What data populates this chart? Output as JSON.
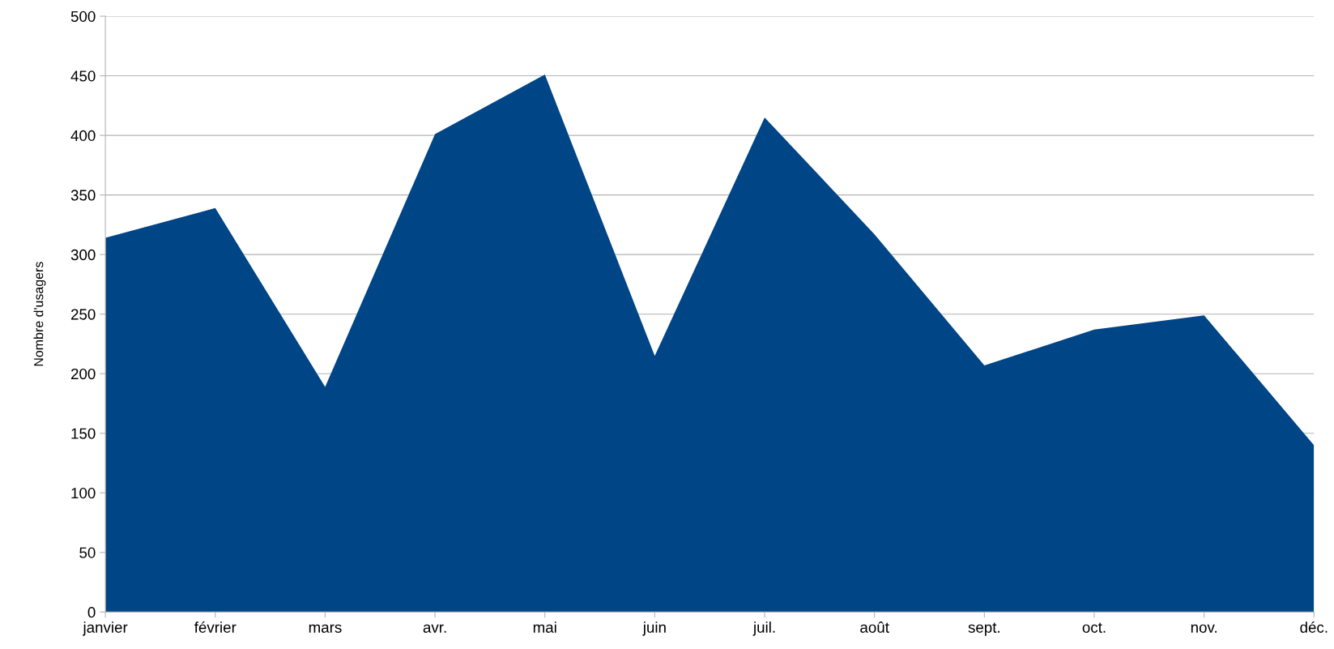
{
  "chart_data": {
    "type": "area",
    "ylabel": "Nombre d'usagers",
    "categories": [
      "janvier",
      "février",
      "mars",
      "avr.",
      "mai",
      "juin",
      "juil.",
      "août",
      "sept.",
      "oct.",
      "nov.",
      "déc."
    ],
    "series": [
      {
        "color": "#004586",
        "values": [
          314,
          339,
          189,
          401,
          451,
          215,
          415,
          317,
          207,
          237,
          249,
          140
        ]
      }
    ],
    "ylim": [
      0,
      500
    ],
    "yticks": [
      0,
      50,
      100,
      150,
      200,
      250,
      300,
      350,
      400,
      450,
      500
    ],
    "grid": "y",
    "legend": false
  }
}
